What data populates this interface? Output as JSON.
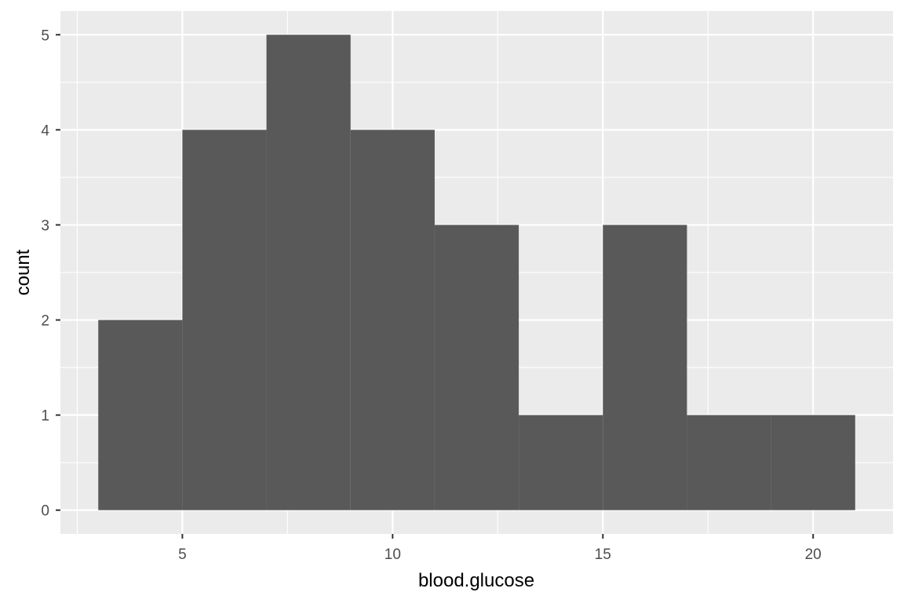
{
  "chart_data": {
    "type": "bar",
    "subtype": "histogram",
    "bins": [
      {
        "start": 3,
        "end": 5,
        "count": 2
      },
      {
        "start": 5,
        "end": 7,
        "count": 4
      },
      {
        "start": 7,
        "end": 9,
        "count": 5
      },
      {
        "start": 9,
        "end": 11,
        "count": 4
      },
      {
        "start": 11,
        "end": 13,
        "count": 3
      },
      {
        "start": 13,
        "end": 15,
        "count": 1
      },
      {
        "start": 15,
        "end": 17,
        "count": 3
      },
      {
        "start": 17,
        "end": 19,
        "count": 1
      },
      {
        "start": 19,
        "end": 21,
        "count": 1
      }
    ],
    "xlabel": "blood.glucose",
    "ylabel": "count",
    "xlim": [
      2.1,
      21.9
    ],
    "ylim": [
      -0.25,
      5.25
    ],
    "x_ticks": [
      5,
      10,
      15,
      20
    ],
    "x_minor_ticks": [
      2.5,
      7.5,
      12.5,
      17.5
    ],
    "y_ticks": [
      0,
      1,
      2,
      3,
      4,
      5
    ],
    "y_minor_ticks": [
      0.5,
      1.5,
      2.5,
      3.5,
      4.5
    ],
    "grid": true,
    "colors": {
      "panel": "#ebebeb",
      "gridline": "#ffffff",
      "bar": "#595959",
      "tick": "#333333",
      "tick_label": "#4d4d4d",
      "title": "#000000"
    }
  }
}
